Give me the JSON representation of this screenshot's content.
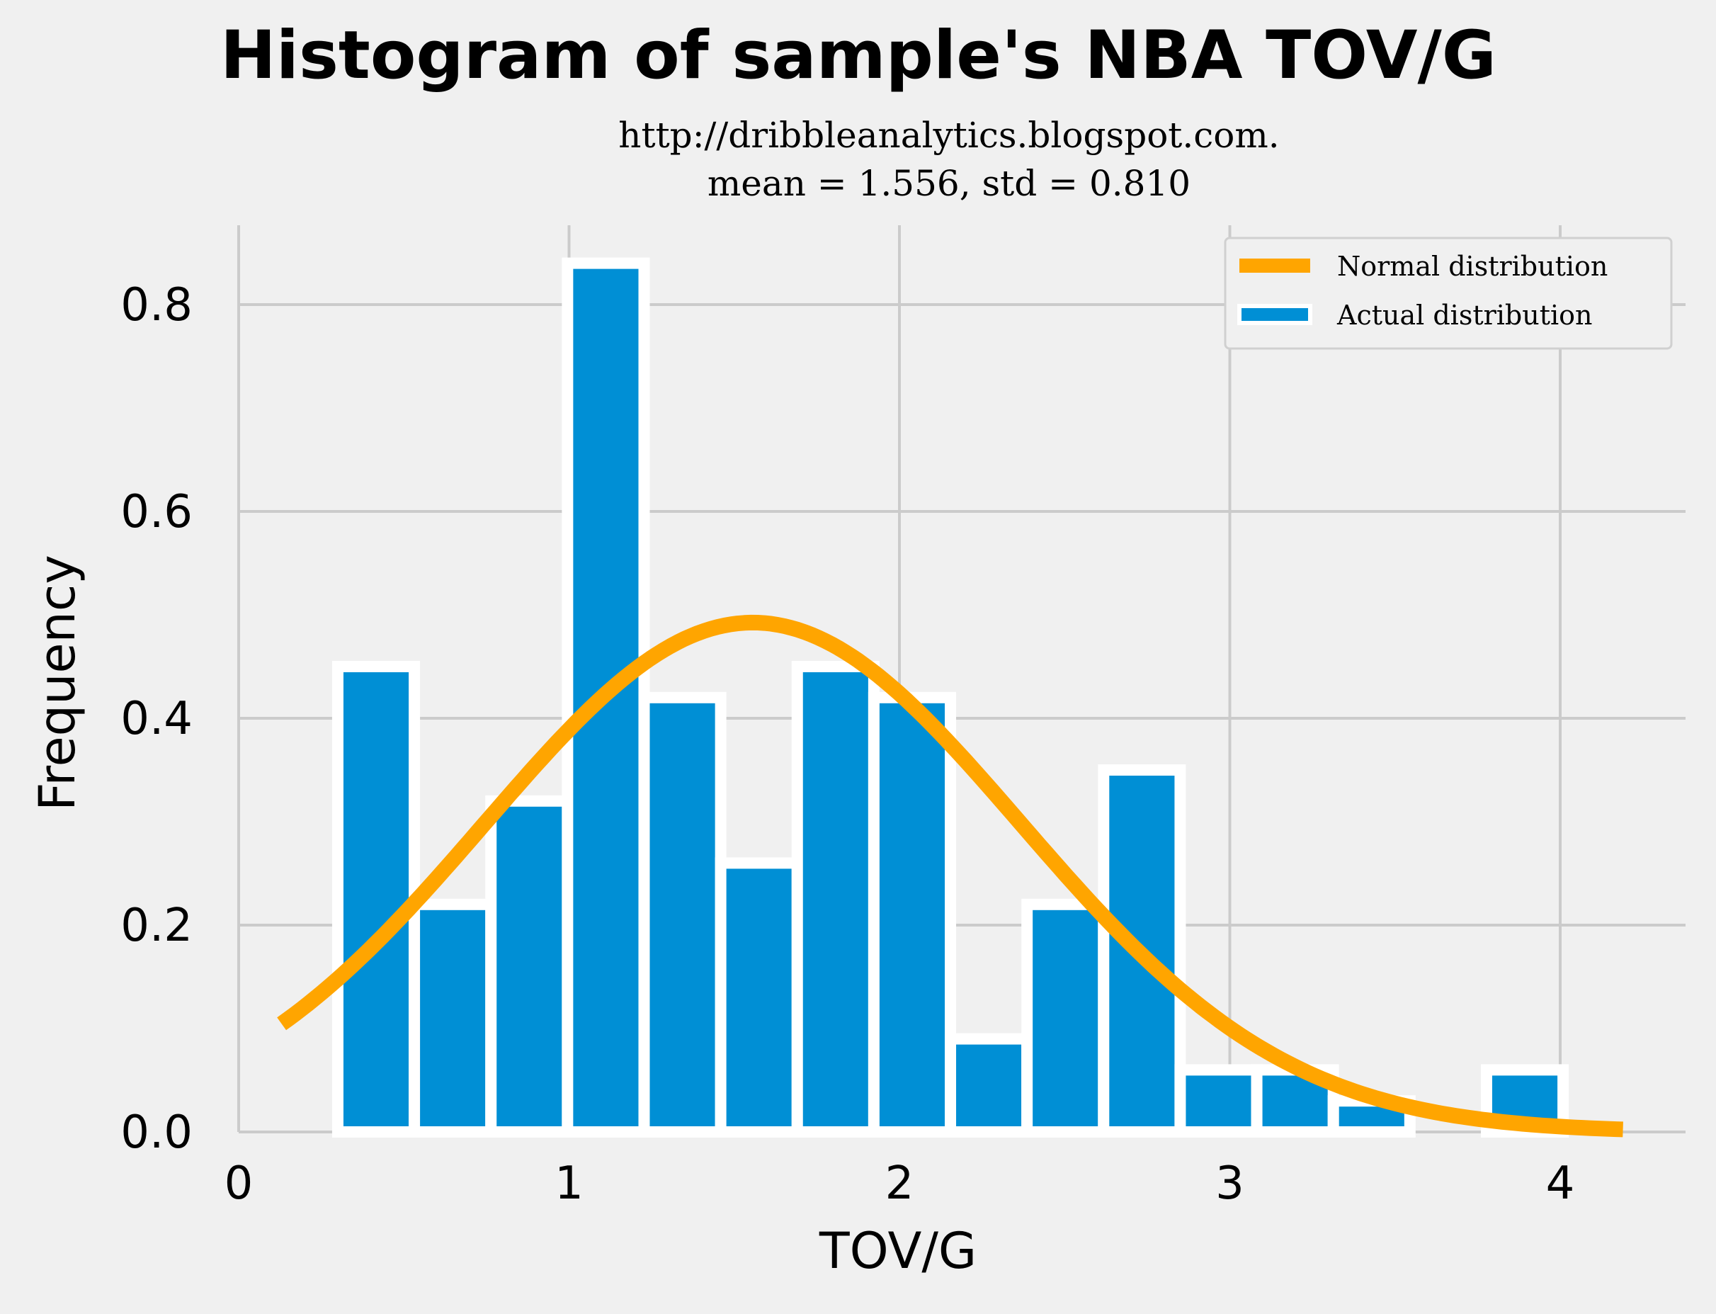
{
  "chart_data": {
    "type": "bar",
    "title": "Histogram of sample's NBA TOV/G",
    "subtitle_lines": [
      "http://dribbleanalytics.blogspot.com.",
      "mean = 1.556, std = 0.810"
    ],
    "xlabel": "TOV/G",
    "ylabel": "Frequency",
    "xlim": [
      0,
      4.2
    ],
    "ylim": [
      0,
      0.88
    ],
    "xticks": [
      0,
      1,
      2,
      3,
      4
    ],
    "xtick_labels": [
      "0",
      "1",
      "2",
      "3",
      "4"
    ],
    "yticks": [
      0.0,
      0.2,
      0.4,
      0.6,
      0.8
    ],
    "ytick_labels": [
      "0.0",
      "0.2",
      "0.4",
      "0.6",
      "0.8"
    ],
    "grid": true,
    "legend_position": "top-right",
    "series": [
      {
        "name": "Actual distribution",
        "kind": "histogram",
        "color": "#008fd5",
        "edge_color": "#ffffff",
        "bin_width": 0.2318,
        "bin_starts": [
          0.3,
          0.5318,
          0.7636,
          0.9954,
          1.2272,
          1.459,
          1.6908,
          1.9226,
          2.1544,
          2.3862,
          2.618,
          2.8498,
          3.0816,
          3.3134,
          3.5452,
          3.777
        ],
        "values": [
          0.45,
          0.22,
          0.32,
          0.84,
          0.42,
          0.26,
          0.45,
          0.42,
          0.09,
          0.22,
          0.35,
          0.06,
          0.06,
          0.03,
          0.0,
          0.06
        ]
      },
      {
        "name": "Normal distribution",
        "kind": "line",
        "color": "#ffa500",
        "mean": 1.556,
        "std": 0.81,
        "x_range": [
          0.13,
          4.19
        ]
      }
    ]
  }
}
